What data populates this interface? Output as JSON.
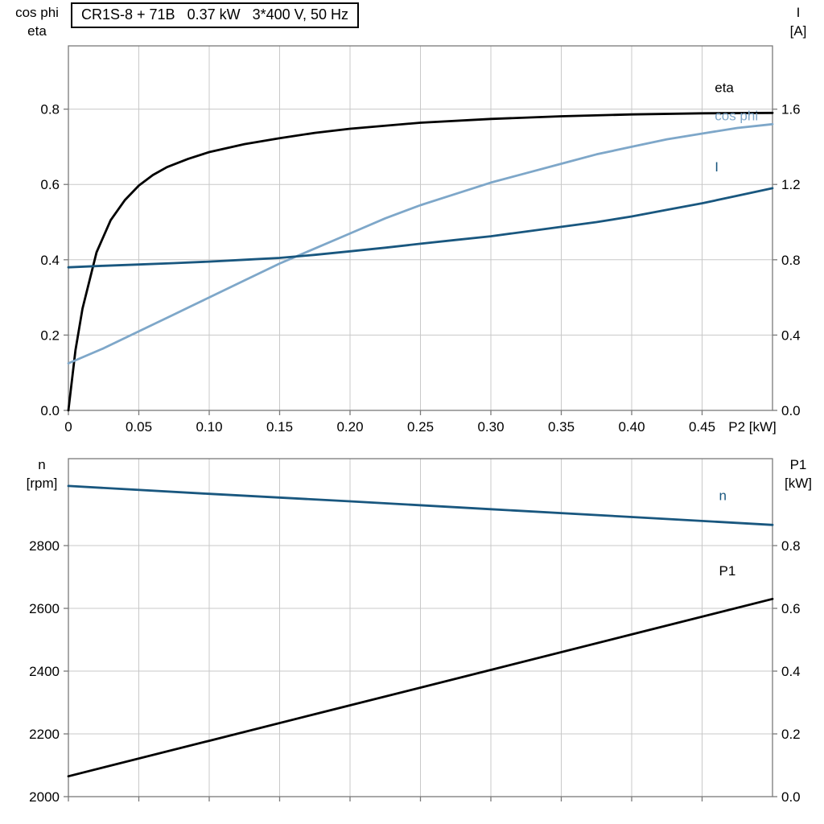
{
  "title_box": {
    "text": "CR1S-8 + 71B   0.37 kW   3*400 V, 50 Hz"
  },
  "axes_titles": {
    "top_left_line1": "cos phi",
    "top_left_line2": "eta",
    "top_right_line1": "I",
    "top_right_line2": "[A]",
    "bottom_left_line1": "n",
    "bottom_left_line2": "[rpm]",
    "bottom_right_line1": "P1",
    "bottom_right_line2": "[kW]"
  },
  "chart_data": [
    {
      "id": "top",
      "type": "line",
      "title": "CR1S-8 + 71B   0.37 kW   3*400 V, 50 Hz",
      "xlabel": "P2 [kW]",
      "xlim": [
        0,
        0.5
      ],
      "x_ticks": [
        0,
        0.05,
        0.1,
        0.15,
        0.2,
        0.25,
        0.3,
        0.35,
        0.4,
        0.45
      ],
      "x_tick_labels": [
        "0",
        "0.05",
        "0.10",
        "0.15",
        "0.20",
        "0.25",
        "0.30",
        "0.35",
        "0.40",
        "0.45"
      ],
      "x_end_label": "P2 [kW]",
      "grid": true,
      "grid_color": "#c8c8c8",
      "axis_color": "#7a7a7a",
      "left_axis": {
        "label": "cos phi / eta",
        "ticks": [
          0,
          0.2,
          0.4,
          0.6,
          0.8
        ],
        "tick_labels": [
          "0.0",
          "0.2",
          "0.4",
          "0.6",
          "0.8"
        ],
        "lim": [
          0,
          0.968
        ]
      },
      "right_axis": {
        "label": "I [A]",
        "ticks": [
          0,
          0.4,
          0.8,
          1.2,
          1.6
        ],
        "tick_labels": [
          "0.0",
          "0.4",
          "0.8",
          "1.2",
          "1.6"
        ],
        "lim": [
          0,
          1.936
        ]
      },
      "series": [
        {
          "name": "eta",
          "axis": "left",
          "color": "#000000",
          "label": "eta",
          "label_at": [
            0.459,
            0.845
          ],
          "points": [
            [
              0,
              0
            ],
            [
              0.005,
              0.16
            ],
            [
              0.01,
              0.27
            ],
            [
              0.02,
              0.42
            ],
            [
              0.03,
              0.505
            ],
            [
              0.04,
              0.558
            ],
            [
              0.05,
              0.597
            ],
            [
              0.06,
              0.625
            ],
            [
              0.07,
              0.646
            ],
            [
              0.085,
              0.668
            ],
            [
              0.1,
              0.686
            ],
            [
              0.125,
              0.707
            ],
            [
              0.15,
              0.723
            ],
            [
              0.175,
              0.737
            ],
            [
              0.2,
              0.748
            ],
            [
              0.25,
              0.764
            ],
            [
              0.3,
              0.774
            ],
            [
              0.35,
              0.781
            ],
            [
              0.4,
              0.786
            ],
            [
              0.45,
              0.789
            ],
            [
              0.5,
              0.79
            ]
          ]
        },
        {
          "name": "cos phi",
          "axis": "left",
          "color": "#7ea7c9",
          "label": "cos phi",
          "label_at": [
            0.459,
            0.77
          ],
          "points": [
            [
              0,
              0.125
            ],
            [
              0.025,
              0.165
            ],
            [
              0.05,
              0.21
            ],
            [
              0.075,
              0.255
            ],
            [
              0.1,
              0.3
            ],
            [
              0.125,
              0.345
            ],
            [
              0.15,
              0.39
            ],
            [
              0.175,
              0.43
            ],
            [
              0.2,
              0.47
            ],
            [
              0.225,
              0.51
            ],
            [
              0.25,
              0.545
            ],
            [
              0.275,
              0.575
            ],
            [
              0.3,
              0.605
            ],
            [
              0.325,
              0.63
            ],
            [
              0.35,
              0.655
            ],
            [
              0.375,
              0.68
            ],
            [
              0.4,
              0.7
            ],
            [
              0.425,
              0.72
            ],
            [
              0.45,
              0.735
            ],
            [
              0.475,
              0.75
            ],
            [
              0.5,
              0.76
            ]
          ]
        },
        {
          "name": "I",
          "axis": "right",
          "color": "#19577f",
          "label": "I",
          "label_at": [
            0.459,
            1.27
          ],
          "points": [
            [
              0,
              0.76
            ],
            [
              0.025,
              0.768
            ],
            [
              0.05,
              0.775
            ],
            [
              0.075,
              0.782
            ],
            [
              0.1,
              0.79
            ],
            [
              0.125,
              0.8
            ],
            [
              0.15,
              0.81
            ],
            [
              0.175,
              0.826
            ],
            [
              0.2,
              0.845
            ],
            [
              0.225,
              0.864
            ],
            [
              0.25,
              0.885
            ],
            [
              0.275,
              0.905
            ],
            [
              0.3,
              0.925
            ],
            [
              0.325,
              0.95
            ],
            [
              0.35,
              0.975
            ],
            [
              0.375,
              1.0
            ],
            [
              0.4,
              1.03
            ],
            [
              0.425,
              1.065
            ],
            [
              0.45,
              1.1
            ],
            [
              0.475,
              1.14
            ],
            [
              0.5,
              1.18
            ]
          ]
        }
      ]
    },
    {
      "id": "bottom",
      "type": "line",
      "xlabel": "",
      "xlim": [
        0,
        0.5
      ],
      "x_ticks": [
        0,
        0.05,
        0.1,
        0.15,
        0.2,
        0.25,
        0.3,
        0.35,
        0.4,
        0.45
      ],
      "x_tick_labels": null,
      "x_end_label": null,
      "grid": true,
      "grid_color": "#c8c8c8",
      "axis_color": "#7a7a7a",
      "left_axis": {
        "label": "n [rpm]",
        "ticks": [
          2000,
          2200,
          2400,
          2600,
          2800
        ],
        "tick_labels": [
          "2000",
          "2200",
          "2400",
          "2600",
          "2800"
        ],
        "lim": [
          2000,
          3077
        ]
      },
      "right_axis": {
        "label": "P1 [kW]",
        "ticks": [
          0,
          0.2,
          0.4,
          0.6,
          0.8
        ],
        "tick_labels": [
          "0.0",
          "0.2",
          "0.4",
          "0.6",
          "0.8"
        ],
        "lim": [
          0,
          1.077
        ]
      },
      "series": [
        {
          "name": "n",
          "axis": "left",
          "color": "#19577f",
          "label": "n",
          "label_at": [
            0.462,
            2945
          ],
          "points": [
            [
              0,
              2990
            ],
            [
              0.1,
              2965
            ],
            [
              0.2,
              2941
            ],
            [
              0.3,
              2916
            ],
            [
              0.4,
              2891
            ],
            [
              0.5,
              2866
            ]
          ]
        },
        {
          "name": "P1",
          "axis": "right",
          "color": "#000000",
          "label": "P1",
          "label_at": [
            0.462,
            0.705
          ],
          "points": [
            [
              0,
              0.065
            ],
            [
              0.1,
              0.178
            ],
            [
              0.2,
              0.291
            ],
            [
              0.3,
              0.404
            ],
            [
              0.4,
              0.517
            ],
            [
              0.5,
              0.63
            ]
          ]
        }
      ]
    }
  ]
}
